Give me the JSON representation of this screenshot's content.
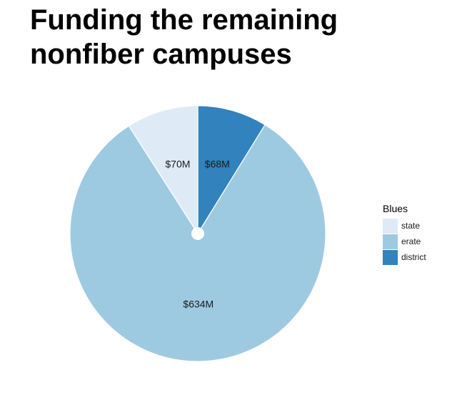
{
  "chart_data": {
    "type": "pie",
    "title_lines": [
      "Funding the remaining",
      "nonfiber campuses"
    ],
    "categories": [
      "state",
      "erate",
      "district"
    ],
    "values": [
      70,
      634,
      68
    ],
    "value_labels": [
      "$70M",
      "$634M",
      "$68M"
    ],
    "colors": [
      "#deebf7",
      "#9ecae1",
      "#3182bd"
    ],
    "slice_order": [
      "district",
      "erate",
      "state"
    ],
    "start": "12 o'clock, clockwise",
    "legend": {
      "title": "Blues",
      "position": "right",
      "entries": [
        "state",
        "erate",
        "district"
      ]
    }
  }
}
